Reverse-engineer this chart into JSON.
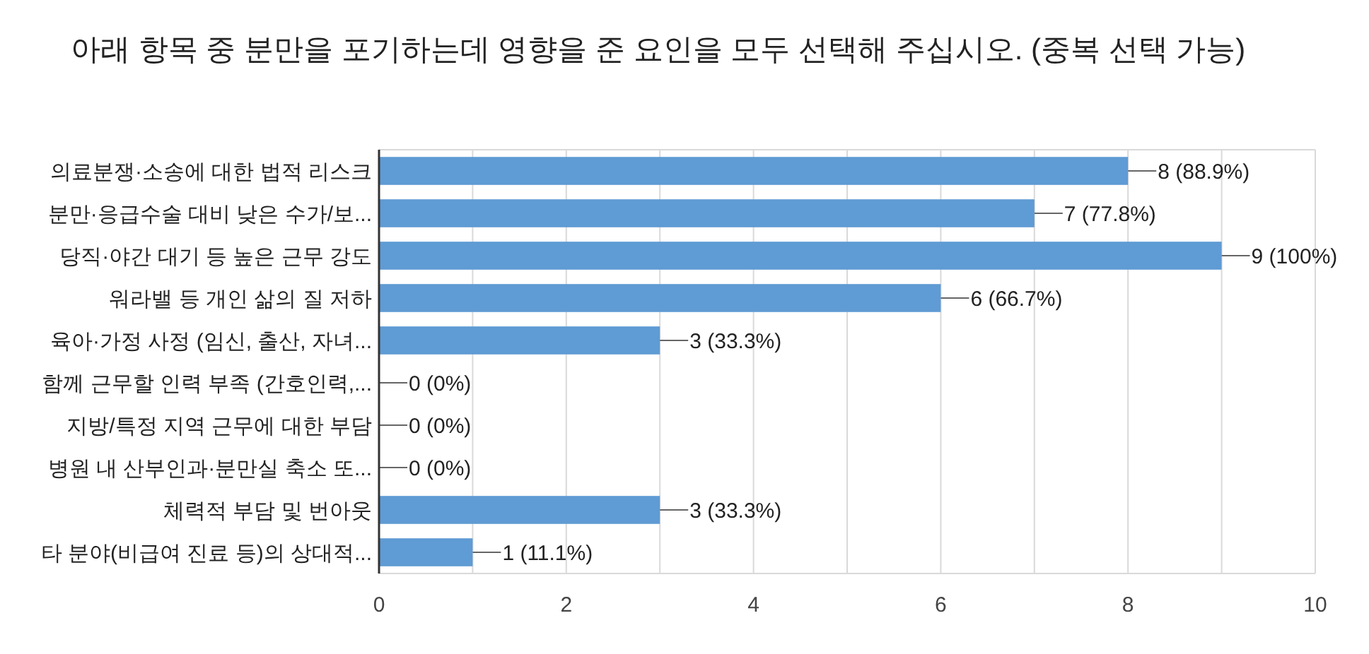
{
  "chart_data": {
    "type": "bar",
    "orientation": "horizontal",
    "title": "아래 항목 중 분만을 포기하는데 영향을 준 요인을 모두 선택해 주십시오. (중복 선택 가능)",
    "categories": [
      "의료분쟁·소송에 대한 법적 리스크",
      "분만·응급수술 대비 낮은 수가/보...",
      "당직·야간 대기 등 높은 근무 강도",
      "워라밸 등 개인 삶의 질 저하",
      "육아·가정 사정 (임신, 출산, 자녀...",
      "함께 근무할 인력 부족 (간호인력,...",
      "지방/특정 지역 근무에 대한 부담",
      "병원 내 산부인과·분만실 축소 또...",
      "체력적 부담 및 번아웃",
      "타 분야(비급여 진료 등)의 상대적..."
    ],
    "values": [
      8,
      7,
      9,
      6,
      3,
      0,
      0,
      0,
      3,
      1
    ],
    "value_labels": [
      "8 (88.9%)",
      "7 (77.8%)",
      "9 (100%)",
      "6 (66.7%)",
      "3 (33.3%)",
      "0 (0%)",
      "0 (0%)",
      "0 (0%)",
      "3 (33.3%)",
      "1 (11.1%)"
    ],
    "color": "#5f9bd4",
    "xlim": [
      0,
      10
    ],
    "xticks": [
      0,
      {
        "value": 1,
        "label": null
      },
      2,
      {
        "value": 3,
        "label": null
      },
      4,
      {
        "value": 5,
        "label": null
      },
      6,
      {
        "value": 7,
        "label": null
      },
      8,
      {
        "value": 9,
        "label": null
      },
      10
    ],
    "grid": "x"
  }
}
